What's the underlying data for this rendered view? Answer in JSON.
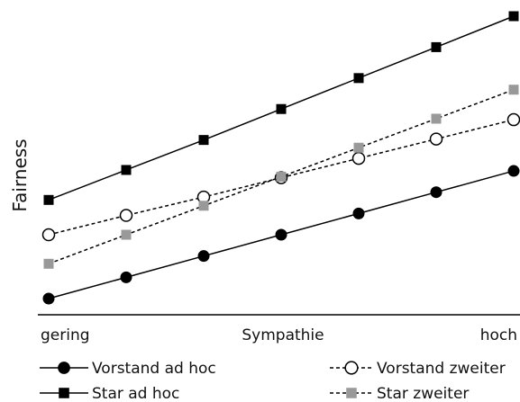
{
  "chart_data": {
    "type": "line",
    "title": "",
    "ylabel": "Fairness",
    "xlabel": "Sympathie",
    "x_tick_labels": {
      "left": "gering",
      "right": "hoch"
    },
    "x": [
      0,
      1,
      2,
      3,
      4,
      5,
      6
    ],
    "y_axis_shown": false,
    "grid": false,
    "legend_position": "bottom",
    "series": [
      {
        "name": "Vorstand ad hoc",
        "line_style": "solid",
        "marker": "filled-circle",
        "color": "#000000",
        "values": [
          0.0,
          0.22,
          0.44,
          0.66,
          0.88,
          1.1,
          1.32
        ]
      },
      {
        "name": "Star ad hoc",
        "line_style": "solid",
        "marker": "filled-square",
        "color": "#000000",
        "values": [
          1.02,
          1.33,
          1.64,
          1.96,
          2.28,
          2.6,
          2.92
        ]
      },
      {
        "name": "Vorstand zweiter",
        "line_style": "dashed",
        "marker": "open-circle",
        "color": "#000000",
        "values": [
          0.66,
          0.86,
          1.05,
          1.25,
          1.45,
          1.65,
          1.85
        ]
      },
      {
        "name": "Star zweiter",
        "line_style": "dashed",
        "marker": "gray-square",
        "color": "#999999",
        "values": [
          0.36,
          0.66,
          0.96,
          1.26,
          1.56,
          1.86,
          2.16
        ]
      }
    ]
  }
}
